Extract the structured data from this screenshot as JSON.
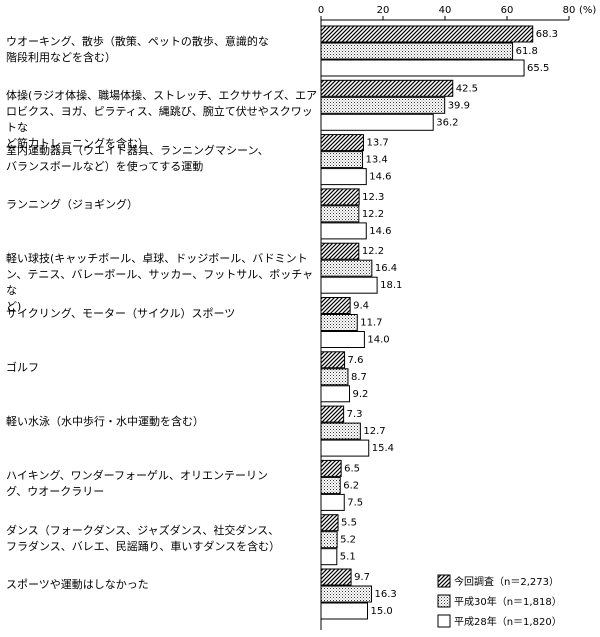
{
  "chart_data": {
    "type": "bar",
    "orientation": "horizontal",
    "unit": "(%)",
    "xlim": [
      0,
      80
    ],
    "xticks": [
      "0",
      "20",
      "40",
      "60",
      "80"
    ],
    "categories": [
      "ウオーキング、散歩（散策、ペットの散歩、意識的な階段利用などを含む）",
      "体操(ラジオ体操、職場体操、ストレッチ、エクササイズ、エアロビクス、ヨガ、ピラティス、縄跳び、腕立て伏せやスクワットなど筋力トレーニングを含む）",
      "室内運動器具（ウエイト器具、ランニングマシーン、バランスボールなど）を使ってする運動",
      "ランニング（ジョギング）",
      "軽い球技(キャッチボール、卓球、ドッジボール、バドミントン、テニス、バレーボール、サッカー、フットサル、ボッチャなど)",
      "サイクリング、モーター（サイクル）スポーツ",
      "ゴルフ",
      "軽い水泳（水中歩行・水中運動を含む）",
      "ハイキング、ワンダーフォーゲル、オリエンテーリング、ウオークラリー",
      "ダンス（フォークダンス、ジャズダンス、社交ダンス、フラダンス、バレエ、民謡踊り、車いすダンスを含む）",
      "スポーツや運動はしなかった"
    ],
    "category_lines": [
      [
        "ウオーキング、散歩（散策、ペットの散歩、意識的な",
        "階段利用などを含む）"
      ],
      [
        "体操(ラジオ体操、職場体操、ストレッチ、エクササイズ、エア",
        "ロビクス、ヨガ、ピラティス、縄跳び、腕立て伏せやスクワットな",
        "ど筋力トレーニングを含む）"
      ],
      [
        "室内運動器具（ウエイト器具、ランニングマシーン、",
        "バランスボールなど）を使ってする運動"
      ],
      [
        "ランニング（ジョギング）"
      ],
      [
        "軽い球技(キャッチボール、卓球、ドッジボール、バドミント",
        "ン、テニス、バレーボール、サッカー、フットサル、ボッチャな",
        "ど)"
      ],
      [
        "サイクリング、モーター（サイクル）スポーツ"
      ],
      [
        "ゴルフ"
      ],
      [
        "軽い水泳（水中歩行・水中運動を含む）"
      ],
      [
        "ハイキング、ワンダーフォーゲル、オリエンテーリン",
        "グ、ウオークラリー"
      ],
      [
        "ダンス（フォークダンス、ジャズダンス、社交ダンス、",
        "フラダンス、バレエ、民謡踊り、車いすダンスを含む）"
      ],
      [
        "スポーツや運動はしなかった"
      ]
    ],
    "series": [
      {
        "name": "今回調査（n＝2,273）",
        "pattern": "hatch",
        "values": [
          68.3,
          42.5,
          13.7,
          12.3,
          12.2,
          9.4,
          7.6,
          7.3,
          6.5,
          5.5,
          9.7
        ],
        "labels": [
          "68.3",
          "42.5",
          "13.7",
          "12.3",
          "12.2",
          "9.4",
          "7.6",
          "7.3",
          "6.5",
          "5.5",
          "9.7"
        ]
      },
      {
        "name": "平成30年（n＝1,818）",
        "pattern": "dots",
        "values": [
          61.8,
          39.9,
          13.4,
          12.2,
          16.4,
          11.7,
          8.7,
          12.7,
          6.2,
          5.2,
          16.3
        ],
        "labels": [
          "61.8",
          "39.9",
          "13.4",
          "12.2",
          "16.4",
          "11.7",
          "8.7",
          "12.7",
          "6.2",
          "5.2",
          "16.3"
        ]
      },
      {
        "name": "平成28年（n＝1,820）",
        "pattern": "none",
        "values": [
          65.5,
          36.2,
          14.6,
          14.6,
          18.1,
          14.0,
          9.2,
          15.4,
          7.5,
          5.1,
          15.0
        ],
        "labels": [
          "65.5",
          "36.2",
          "14.6",
          "14.6",
          "18.1",
          "14.0",
          "9.2",
          "15.4",
          "7.5",
          "5.1",
          "15.0"
        ]
      }
    ],
    "legend_position": "bottom-right",
    "grid": false
  }
}
